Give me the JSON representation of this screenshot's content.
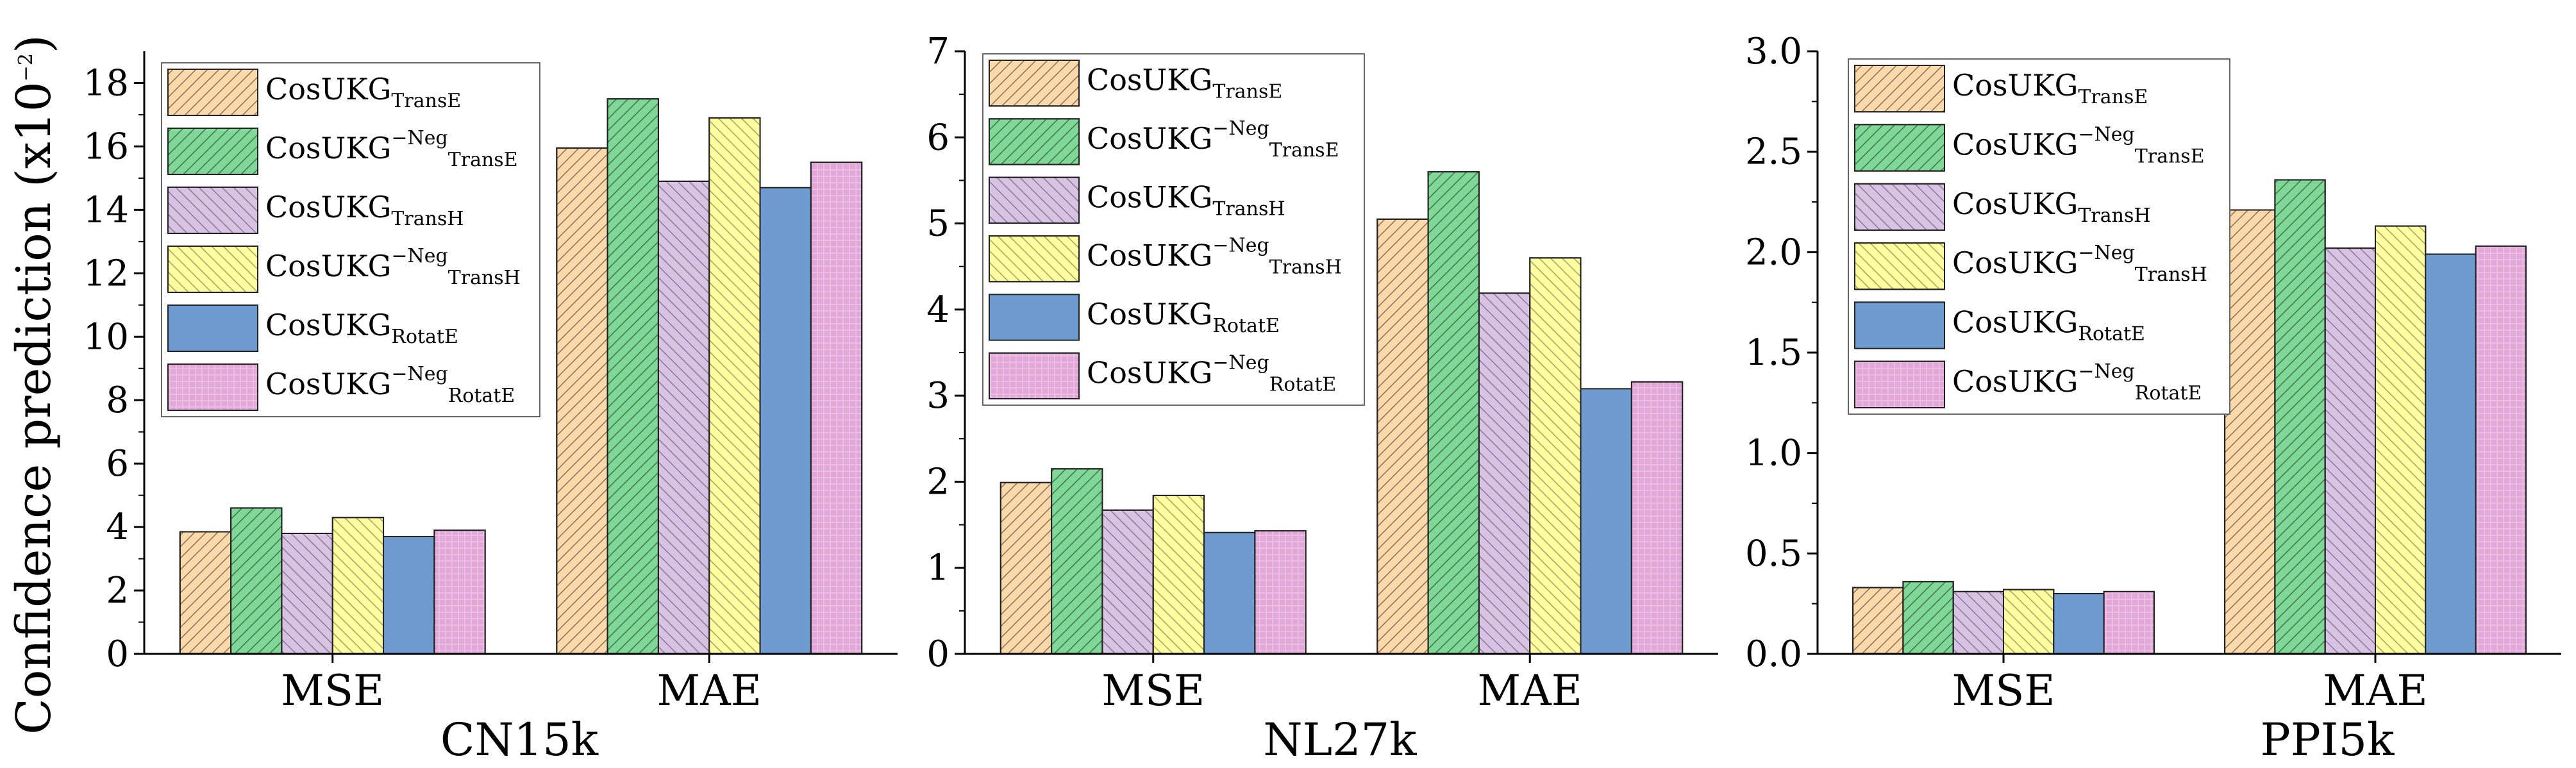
{
  "figure": {
    "ylabel": "Confidence prediction (x10",
    "ylabel_exp": "−2",
    "ylabel_close": ")"
  },
  "series_styles": [
    {
      "fill": "#FDD9A9",
      "stroke": "#E08A2E",
      "hatch": "diag"
    },
    {
      "fill": "#7FD897",
      "stroke": "#2E8B4A",
      "hatch": "diag"
    },
    {
      "fill": "#D8C3E4",
      "stroke": "#A080B8",
      "hatch": "back"
    },
    {
      "fill": "#FFFFA0",
      "stroke": "#C8C440",
      "hatch": "back"
    },
    {
      "fill": "#6E9BD0",
      "stroke": "#3E6AA0",
      "hatch": "none"
    },
    {
      "fill": "#E3A6D8",
      "stroke": "#B070A8",
      "hatch": "grid"
    }
  ],
  "legend": [
    {
      "base": "CosUKG",
      "sup": "",
      "sub": "TransE"
    },
    {
      "base": "CosUKG",
      "sup": "−Neg",
      "sub": "TransE"
    },
    {
      "base": "CosUKG",
      "sup": "",
      "sub": "TransH"
    },
    {
      "base": "CosUKG",
      "sup": "−Neg",
      "sub": "TransH"
    },
    {
      "base": "CosUKG",
      "sup": "",
      "sub": "RotatE"
    },
    {
      "base": "CosUKG",
      "sup": "−Neg",
      "sub": "RotatE"
    }
  ],
  "chart_data": [
    {
      "type": "bar",
      "title": "CN15k",
      "categories": [
        "MSE",
        "MAE"
      ],
      "ylim": [
        0,
        19
      ],
      "yticks": [
        0,
        2,
        4,
        6,
        8,
        10,
        12,
        14,
        16,
        18
      ],
      "ytick_labels": [
        "0",
        "2",
        "4",
        "6",
        "8",
        "10",
        "12",
        "14",
        "16",
        "18"
      ],
      "series": [
        {
          "name": "CosUKG TransE",
          "values": [
            3.85,
            15.95
          ]
        },
        {
          "name": "CosUKG −Neg TransE",
          "values": [
            4.6,
            17.5
          ]
        },
        {
          "name": "CosUKG TransH",
          "values": [
            3.8,
            14.9
          ]
        },
        {
          "name": "CosUKG −Neg TransH",
          "values": [
            4.3,
            16.9
          ]
        },
        {
          "name": "CosUKG RotatE",
          "values": [
            3.7,
            14.7
          ]
        },
        {
          "name": "CosUKG −Neg RotatE",
          "values": [
            3.9,
            15.5
          ]
        }
      ]
    },
    {
      "type": "bar",
      "title": "NL27k",
      "categories": [
        "MSE",
        "MAE"
      ],
      "ylim": [
        0,
        7
      ],
      "yticks": [
        0,
        1,
        2,
        3,
        4,
        5,
        6,
        7
      ],
      "ytick_labels": [
        "0",
        "1",
        "2",
        "3",
        "4",
        "5",
        "6",
        "7"
      ],
      "series": [
        {
          "name": "CosUKG TransE",
          "values": [
            1.99,
            5.05
          ]
        },
        {
          "name": "CosUKG −Neg TransE",
          "values": [
            2.15,
            5.6
          ]
        },
        {
          "name": "CosUKG TransH",
          "values": [
            1.67,
            4.19
          ]
        },
        {
          "name": "CosUKG −Neg TransH",
          "values": [
            1.84,
            4.6
          ]
        },
        {
          "name": "CosUKG RotatE",
          "values": [
            1.41,
            3.08
          ]
        },
        {
          "name": "CosUKG −Neg RotatE",
          "values": [
            1.43,
            3.16
          ]
        }
      ]
    },
    {
      "type": "bar",
      "title": "PPI5k",
      "categories": [
        "MSE",
        "MAE"
      ],
      "ylim": [
        0,
        3
      ],
      "yticks": [
        0,
        0.5,
        1,
        1.5,
        2,
        2.5,
        3
      ],
      "ytick_labels": [
        "0.0",
        "0.5",
        "1.0",
        "1.5",
        "2.0",
        "2.5",
        "3.0"
      ],
      "series": [
        {
          "name": "CosUKG TransE",
          "values": [
            0.33,
            2.21
          ]
        },
        {
          "name": "CosUKG −Neg TransE",
          "values": [
            0.36,
            2.36
          ]
        },
        {
          "name": "CosUKG TransH",
          "values": [
            0.31,
            2.02
          ]
        },
        {
          "name": "CosUKG −Neg TransH",
          "values": [
            0.32,
            2.13
          ]
        },
        {
          "name": "CosUKG RotatE",
          "values": [
            0.3,
            1.99
          ]
        },
        {
          "name": "CosUKG −Neg RotatE",
          "values": [
            0.31,
            2.03
          ]
        }
      ]
    }
  ]
}
